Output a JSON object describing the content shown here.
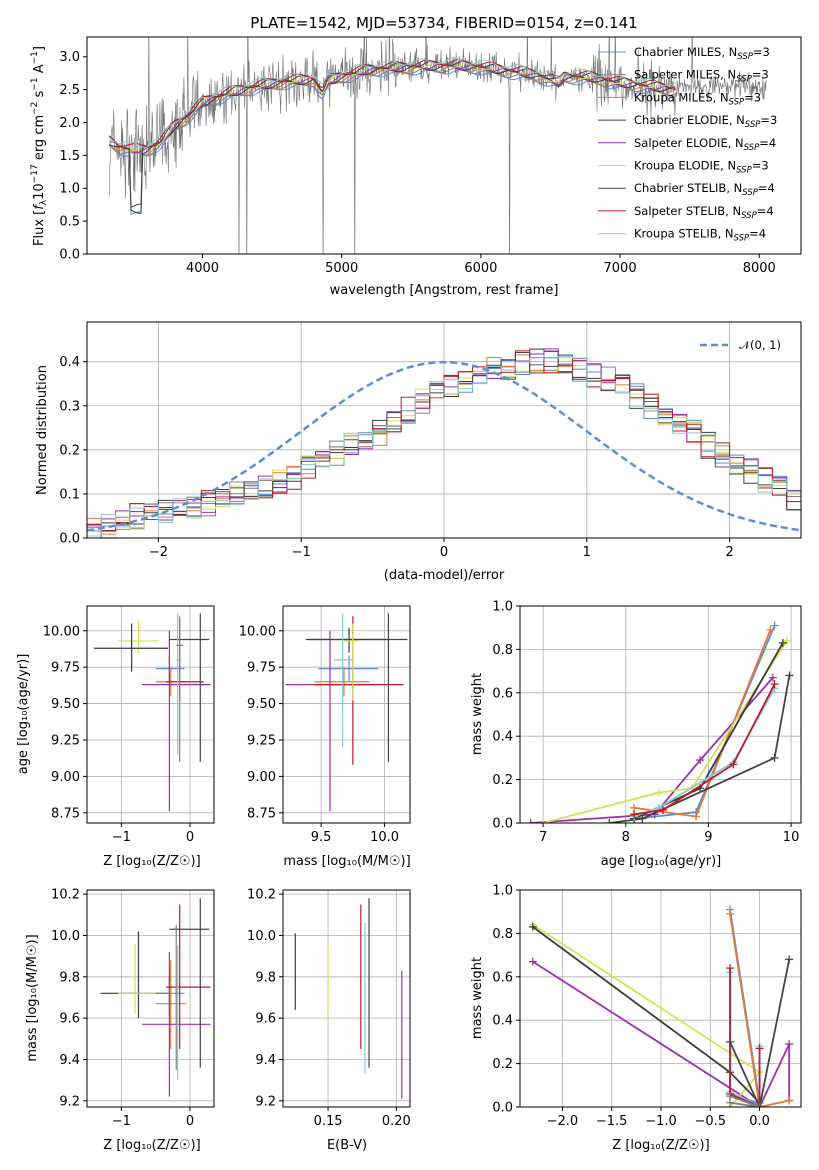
{
  "colors": {
    "Chabrier MILES": "#5b8dd9",
    "Salpeter MILES": "#808080",
    "Kroupa MILES": "#e07b39",
    "Chabrier ELODIE": "#3a3a3a",
    "Salpeter ELODIE": "#9b30b0",
    "Kroupa ELODIE": "#d4e157",
    "Chabrier STELIB": "#444444",
    "Salpeter STELIB": "#c0182a",
    "Kroupa STELIB": "#86c9d6",
    "grid": "#b0b0b0",
    "normal_curve": "#5b8dd9"
  },
  "chart_data": [
    {
      "id": "spectrum",
      "type": "line",
      "title": "PLATE=1542, MJD=53734, FIBERID=0154, z=0.141",
      "xlabel": "wavelength [Angstrom, rest frame]",
      "ylabel": "Flux [f_λ 10^-17 erg cm^-2 s^-1 A^-1]",
      "xlim": [
        3170,
        8300
      ],
      "ylim": [
        0,
        3.3
      ],
      "xticks": [
        4000,
        5000,
        6000,
        7000,
        8000
      ],
      "yticks": [
        0.0,
        0.5,
        1.0,
        1.5,
        2.0,
        2.5,
        3.0
      ],
      "grid": false,
      "legend_position": "top-right",
      "model_continuum": {
        "x": [
          3330,
          3400,
          3500,
          3600,
          3700,
          3800,
          3900,
          4000,
          4200,
          4400,
          4600,
          4800,
          4861,
          4900,
          5000,
          5200,
          5400,
          5600,
          5800,
          6000,
          6200,
          6400,
          6563,
          6600,
          6800,
          7000,
          7200,
          7400
        ],
        "y": [
          1.72,
          1.62,
          1.58,
          1.58,
          1.7,
          1.95,
          2.1,
          2.3,
          2.45,
          2.55,
          2.62,
          2.65,
          2.45,
          2.62,
          2.7,
          2.8,
          2.83,
          2.85,
          2.86,
          2.84,
          2.78,
          2.72,
          2.6,
          2.7,
          2.68,
          2.6,
          2.55,
          2.5
        ]
      },
      "legend": [
        {
          "label": "Chabrier MILES, N",
          "sub": "SSP",
          "suffix": "=3"
        },
        {
          "label": "Salpeter MILES, N",
          "sub": "SSP",
          "suffix": "=3"
        },
        {
          "label": "Kroupa MILES, N",
          "sub": "SSP",
          "suffix": "=3"
        },
        {
          "label": "Chabrier ELODIE, N",
          "sub": "SSP",
          "suffix": "=3"
        },
        {
          "label": "Salpeter ELODIE, N",
          "sub": "SSP",
          "suffix": "=4"
        },
        {
          "label": "Kroupa ELODIE, N",
          "sub": "SSP",
          "suffix": "=3"
        },
        {
          "label": "Chabrier STELIB, N",
          "sub": "SSP",
          "suffix": "=4"
        },
        {
          "label": "Salpeter STELIB, N",
          "sub": "SSP",
          "suffix": "=4"
        },
        {
          "label": "Kroupa STELIB, N",
          "sub": "SSP",
          "suffix": "=4"
        }
      ]
    },
    {
      "id": "residuals",
      "type": "step",
      "xlabel": "(data-model)/error",
      "ylabel": "Normed distribution",
      "xlim": [
        -2.5,
        2.5
      ],
      "ylim": [
        0,
        0.49
      ],
      "xticks": [
        -2,
        -1,
        0,
        1,
        2
      ],
      "yticks": [
        0.0,
        0.1,
        0.2,
        0.3,
        0.4
      ],
      "grid": true,
      "legend_position": "top-right",
      "legend_label": "𝒩(0, 1)",
      "bin_width": 0.1,
      "bin_start": -2.5,
      "histogram_envelope": [
        0.02,
        0.03,
        0.04,
        0.05,
        0.05,
        0.06,
        0.06,
        0.07,
        0.08,
        0.09,
        0.1,
        0.11,
        0.12,
        0.13,
        0.14,
        0.16,
        0.17,
        0.19,
        0.21,
        0.22,
        0.24,
        0.27,
        0.29,
        0.31,
        0.33,
        0.35,
        0.36,
        0.37,
        0.38,
        0.39,
        0.4,
        0.4,
        0.4,
        0.39,
        0.38,
        0.37,
        0.36,
        0.34,
        0.32,
        0.3,
        0.28,
        0.26,
        0.24,
        0.21,
        0.19,
        0.17,
        0.15,
        0.13,
        0.11,
        0.09
      ]
    },
    {
      "id": "age-vs-Z",
      "type": "errorbar",
      "xlabel": "Z [log₁₀(Z/Z☉)]",
      "ylabel": "age  [log₁₀(age/yr)]",
      "xlim": [
        -1.5,
        0.35
      ],
      "ylim": [
        8.68,
        10.17
      ],
      "xticks": [
        -1,
        0
      ],
      "yticks": [
        8.75,
        9.0,
        9.25,
        9.5,
        9.75,
        10.0
      ],
      "grid": true,
      "points": [
        {
          "c": "Kroupa ELODIE",
          "x": -0.75,
          "xlo": -1.05,
          "xhi": -0.45,
          "y": 9.93,
          "ylo": 9.85,
          "yhi": 10.07
        },
        {
          "c": "Chabrier ELODIE",
          "x": -0.85,
          "xlo": -1.4,
          "xhi": -0.32,
          "y": 9.88,
          "ylo": 9.72,
          "yhi": 10.05
        },
        {
          "c": "Chabrier MILES",
          "x": -0.3,
          "xlo": -0.5,
          "xhi": -0.08,
          "y": 9.74,
          "ylo": 9.65,
          "yhi": 9.83
        },
        {
          "c": "Kroupa MILES",
          "x": -0.28,
          "xlo": -0.5,
          "xhi": -0.05,
          "y": 9.65,
          "ylo": 9.55,
          "yhi": 9.75
        },
        {
          "c": "Salpeter STELIB",
          "x": -0.15,
          "xlo": -0.35,
          "xhi": 0.2,
          "y": 9.65,
          "ylo": 9.52,
          "yhi": 10.08
        },
        {
          "c": "Salpeter ELODIE",
          "x": -0.3,
          "xlo": -0.7,
          "xhi": 0.3,
          "y": 9.63,
          "ylo": 8.76,
          "yhi": 10.0
        },
        {
          "c": "Chabrier STELIB",
          "x": 0.15,
          "xlo": -0.3,
          "xhi": 0.28,
          "y": 9.94,
          "ylo": 9.1,
          "yhi": 10.12
        },
        {
          "c": "Kroupa STELIB",
          "x": -0.18,
          "xlo": -0.2,
          "xhi": -0.16,
          "y": 9.8,
          "ylo": 9.15,
          "yhi": 10.12
        },
        {
          "c": "Salpeter MILES",
          "x": -0.15,
          "xlo": -0.2,
          "xhi": -0.1,
          "y": 9.9,
          "ylo": 9.1,
          "yhi": 10.1
        }
      ]
    },
    {
      "id": "age-vs-mass",
      "type": "errorbar",
      "xlabel": "mass [log₁₀(M/M☉)]",
      "ylabel": "",
      "xlim": [
        9.2,
        10.2
      ],
      "ylim": [
        8.68,
        10.17
      ],
      "xticks": [
        9.5,
        10.0
      ],
      "yticks": [
        8.75,
        9.0,
        9.25,
        9.5,
        9.75,
        10.0
      ],
      "grid": true,
      "points": [
        {
          "c": "Chabrier ELODIE",
          "x": 9.72,
          "xlo": 9.38,
          "xhi": 10.02,
          "y": 9.94,
          "ylo": 9.85,
          "yhi": 10.02
        },
        {
          "c": "Chabrier MILES",
          "x": 9.72,
          "xlo": 9.48,
          "xhi": 9.95,
          "y": 9.74,
          "ylo": 9.65,
          "yhi": 9.83
        },
        {
          "c": "Kroupa MILES",
          "x": 9.68,
          "xlo": 9.45,
          "xhi": 9.88,
          "y": 9.65,
          "ylo": 9.55,
          "yhi": 9.75
        },
        {
          "c": "Salpeter ELODIE",
          "x": 9.57,
          "xlo": 9.22,
          "xhi": 9.92,
          "y": 9.63,
          "ylo": 8.76,
          "yhi": 10.0
        },
        {
          "c": "Salpeter STELIB",
          "x": 9.75,
          "xlo": 9.45,
          "xhi": 10.15,
          "y": 9.63,
          "ylo": 9.08,
          "yhi": 10.1
        },
        {
          "c": "Chabrier STELIB",
          "x": 10.03,
          "xlo": 9.4,
          "xhi": 10.18,
          "y": 9.94,
          "ylo": 9.1,
          "yhi": 10.12
        },
        {
          "c": "Kroupa ELODIE",
          "x": 9.75,
          "xlo": 9.68,
          "xhi": 9.8,
          "y": 9.93,
          "ylo": 9.52,
          "yhi": 10.05
        },
        {
          "c": "Kroupa STELIB",
          "x": 9.67,
          "xlo": 9.6,
          "xhi": 9.75,
          "y": 9.8,
          "ylo": 9.2,
          "yhi": 10.12
        }
      ]
    },
    {
      "id": "massweight-vs-age",
      "type": "line",
      "xlabel": "age  [log₁₀(age/yr)]",
      "ylabel": "mass weight",
      "xlim": [
        6.72,
        10.12
      ],
      "ylim": [
        0,
        1.0
      ],
      "xticks": [
        7,
        8,
        9,
        10
      ],
      "yticks": [
        0.0,
        0.2,
        0.4,
        0.6,
        0.8,
        1.0
      ],
      "grid": true,
      "series": [
        {
          "c": "Chabrier MILES",
          "x": [
            8.1,
            8.85,
            9.8
          ],
          "y": [
            0.02,
            0.05,
            0.91
          ]
        },
        {
          "c": "Kroupa MILES",
          "x": [
            8.1,
            8.85,
            9.75
          ],
          "y": [
            0.07,
            0.03,
            0.89
          ]
        },
        {
          "c": "Salpeter ELODIE",
          "x": [
            6.85,
            8.35,
            8.9,
            9.78
          ],
          "y": [
            0.0,
            0.04,
            0.29,
            0.67
          ]
        },
        {
          "c": "Kroupa ELODIE",
          "x": [
            7.0,
            8.4,
            8.8,
            9.95
          ],
          "y": [
            0.0,
            0.14,
            0.16,
            0.84
          ]
        },
        {
          "c": "Chabrier ELODIE",
          "x": [
            8.1,
            8.9,
            9.9
          ],
          "y": [
            0.02,
            0.16,
            0.83
          ]
        },
        {
          "c": "Chabrier STELIB",
          "x": [
            7.8,
            8.2,
            9.8,
            9.98
          ],
          "y": [
            0.0,
            0.02,
            0.3,
            0.68
          ]
        },
        {
          "c": "Kroupa STELIB",
          "x": [
            8.1,
            8.4,
            9.3,
            9.8
          ],
          "y": [
            0.03,
            0.07,
            0.28,
            0.62
          ]
        },
        {
          "c": "Salpeter STELIB",
          "x": [
            8.1,
            8.45,
            9.3,
            9.8
          ],
          "y": [
            0.04,
            0.06,
            0.27,
            0.64
          ]
        }
      ]
    },
    {
      "id": "mass-vs-Z",
      "type": "errorbar",
      "xlabel": "Z [log₁₀(Z/Z☉)]",
      "ylabel": "mass [log₁₀(M/M☉)]",
      "xlim": [
        -1.5,
        0.35
      ],
      "ylim": [
        9.17,
        10.22
      ],
      "xticks": [
        -1,
        0
      ],
      "yticks": [
        9.2,
        9.4,
        9.6,
        9.8,
        10.0,
        10.2
      ],
      "grid": true,
      "points": [
        {
          "c": "Chabrier ELODIE",
          "x": -0.75,
          "xlo": -1.3,
          "xhi": -0.32,
          "y": 9.72,
          "ylo": 9.6,
          "yhi": 10.02
        },
        {
          "c": "Kroupa ELODIE",
          "x": -0.8,
          "xlo": -1.05,
          "xhi": -0.5,
          "y": 9.72,
          "ylo": 9.62,
          "yhi": 9.96
        },
        {
          "c": "Chabrier MILES",
          "x": -0.3,
          "xlo": -0.5,
          "xhi": -0.08,
          "y": 9.72,
          "ylo": 9.62,
          "yhi": 9.8
        },
        {
          "c": "Kroupa MILES",
          "x": -0.28,
          "xlo": -0.5,
          "xhi": -0.05,
          "y": 9.67,
          "ylo": 9.45,
          "yhi": 9.88
        },
        {
          "c": "Salpeter STELIB",
          "x": -0.15,
          "xlo": -0.35,
          "xhi": 0.3,
          "y": 9.75,
          "ylo": 9.45,
          "yhi": 10.15
        },
        {
          "c": "Salpeter ELODIE",
          "x": -0.3,
          "xlo": -0.7,
          "xhi": 0.3,
          "y": 9.57,
          "ylo": 9.22,
          "yhi": 9.92
        },
        {
          "c": "Chabrier STELIB",
          "x": 0.15,
          "xlo": -0.3,
          "xhi": 0.28,
          "y": 10.03,
          "ylo": 9.36,
          "yhi": 10.18
        },
        {
          "c": "Kroupa STELIB",
          "x": -0.18,
          "xlo": -0.2,
          "xhi": -0.16,
          "y": 9.67,
          "ylo": 9.3,
          "yhi": 9.95
        },
        {
          "c": "Salpeter MILES",
          "x": -0.2,
          "xlo": -0.22,
          "xhi": -0.18,
          "y": 9.72,
          "ylo": 9.35,
          "yhi": 10.05
        }
      ]
    },
    {
      "id": "mass-vs-ebv",
      "type": "errorbar",
      "xlabel": "E(B-V)",
      "ylabel": "",
      "xlim": [
        0.117,
        0.21
      ],
      "ylim": [
        9.17,
        10.22
      ],
      "xticks": [
        0.15,
        0.2
      ],
      "yticks": [
        9.2,
        9.4,
        9.6,
        9.8,
        10.0,
        10.2
      ],
      "grid": true,
      "points": [
        {
          "c": "Chabrier ELODIE",
          "x": 0.126,
          "xlo": 0.126,
          "xhi": 0.126,
          "y": 9.82,
          "ylo": 9.64,
          "yhi": 10.01
        },
        {
          "c": "Kroupa ELODIE",
          "x": 0.15,
          "xlo": 0.15,
          "xhi": 0.15,
          "y": 9.8,
          "ylo": 9.6,
          "yhi": 9.96
        },
        {
          "c": "Salpeter STELIB",
          "x": 0.174,
          "xlo": 0.174,
          "xhi": 0.174,
          "y": 9.8,
          "ylo": 9.45,
          "yhi": 10.15
        },
        {
          "c": "Kroupa STELIB",
          "x": 0.177,
          "xlo": 0.177,
          "xhi": 0.177,
          "y": 9.7,
          "ylo": 9.33,
          "yhi": 10.06
        },
        {
          "c": "Chabrier STELIB",
          "x": 0.18,
          "xlo": 0.18,
          "xhi": 0.18,
          "y": 9.77,
          "ylo": 9.36,
          "yhi": 10.18
        },
        {
          "c": "Salpeter ELODIE",
          "x": 0.204,
          "xlo": 0.204,
          "xhi": 0.204,
          "y": 9.57,
          "ylo": 9.21,
          "yhi": 9.83
        }
      ]
    },
    {
      "id": "massweight-vs-Z",
      "type": "line",
      "xlabel": "Z [log₁₀(Z/Z☉)]",
      "ylabel": "mass weight",
      "xlim": [
        -2.43,
        0.42
      ],
      "ylim": [
        0,
        1.0
      ],
      "xticks": [
        -2.0,
        -1.5,
        -1.0,
        -0.5,
        0.0
      ],
      "yticks": [
        0.0,
        0.2,
        0.4,
        0.6,
        0.8,
        1.0
      ],
      "grid": true,
      "series": [
        {
          "c": "Salpeter ELODIE",
          "x": [
            -2.3,
            0.0,
            0.3,
            0.3
          ],
          "y": [
            0.67,
            0.0,
            0.29,
            0.03
          ]
        },
        {
          "c": "Kroupa ELODIE",
          "x": [
            -2.3,
            0.0,
            -0.3
          ],
          "y": [
            0.84,
            0.16,
            0.0
          ]
        },
        {
          "c": "Chabrier ELODIE",
          "x": [
            -2.3,
            -0.3,
            0.0
          ],
          "y": [
            0.83,
            0.16,
            0.02
          ]
        },
        {
          "c": "Chabrier MILES",
          "x": [
            -0.3,
            0.0,
            -0.3
          ],
          "y": [
            0.91,
            0.02,
            0.05
          ]
        },
        {
          "c": "Kroupa MILES",
          "x": [
            -0.3,
            0.0,
            0.3
          ],
          "y": [
            0.89,
            0.0,
            0.03
          ]
        },
        {
          "c": "Kroupa STELIB",
          "x": [
            -0.3,
            -0.3,
            0.0,
            0.0
          ],
          "y": [
            0.62,
            0.07,
            0.0,
            0.28
          ]
        },
        {
          "c": "Salpeter STELIB",
          "x": [
            -0.3,
            -0.3,
            0.0,
            0.0
          ],
          "y": [
            0.64,
            0.06,
            0.0,
            0.27
          ]
        },
        {
          "c": "Chabrier STELIB",
          "x": [
            -0.3,
            0.0,
            0.3
          ],
          "y": [
            0.3,
            0.0,
            0.68
          ]
        },
        {
          "c": "Salpeter MILES",
          "x": [
            -0.3,
            0.0,
            -0.3
          ],
          "y": [
            0.02,
            0.0,
            0.05
          ]
        }
      ]
    }
  ]
}
